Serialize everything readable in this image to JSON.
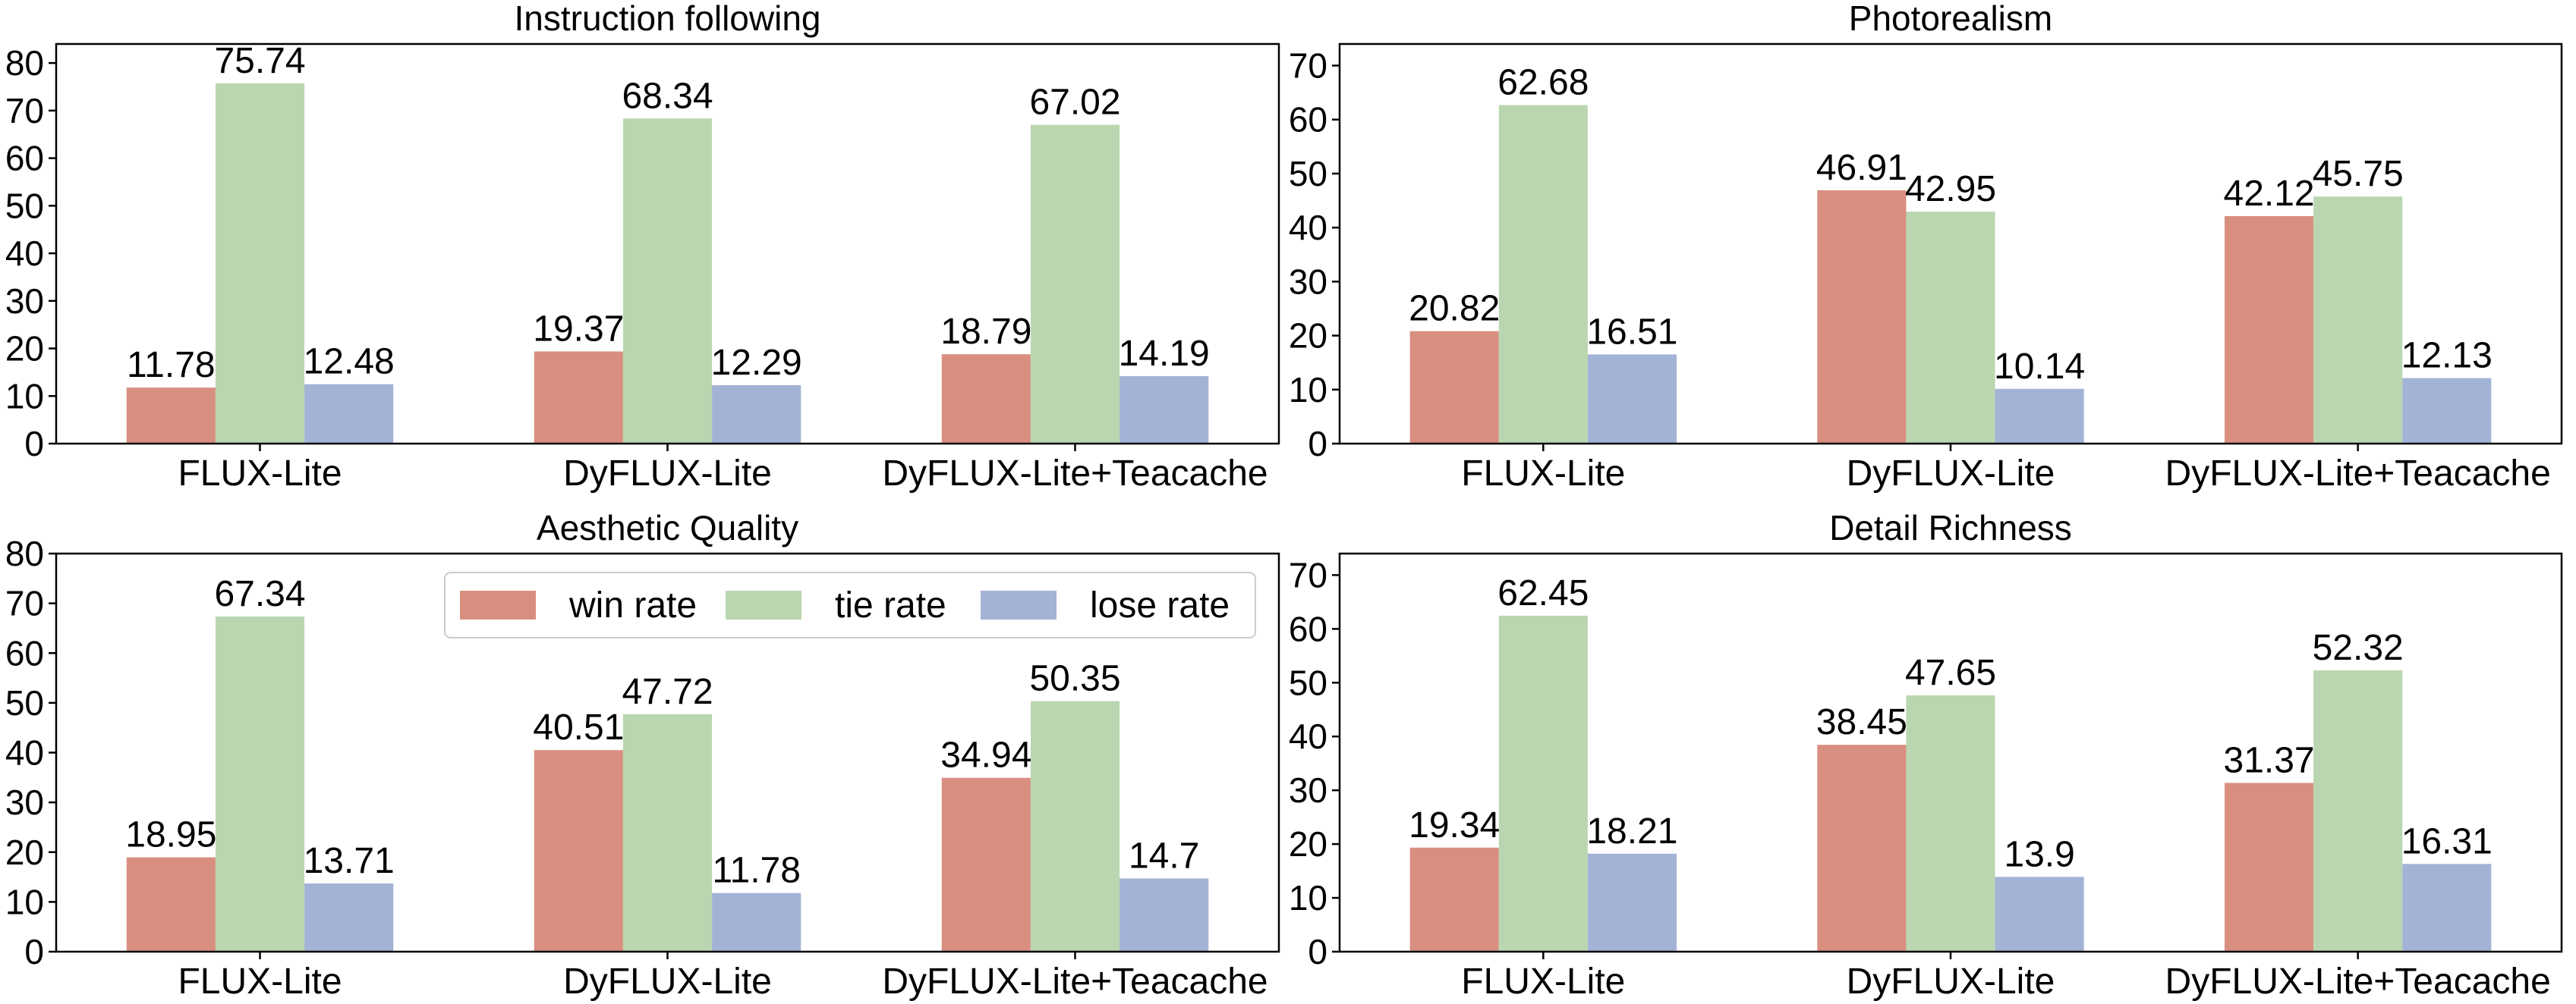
{
  "colors": {
    "win": "#d98f80",
    "tie": "#bad6b0",
    "lose": "#a3b3d6"
  },
  "legend": {
    "placement": "top-right of Aesthetic Quality panel",
    "items": [
      {
        "label": "win rate",
        "color_key": "win"
      },
      {
        "label": "tie rate",
        "color_key": "tie"
      },
      {
        "label": "lose rate",
        "color_key": "lose"
      }
    ]
  },
  "chart_data": [
    {
      "type": "bar",
      "title": "Instruction following",
      "categories": [
        "FLUX-Lite",
        "DyFLUX-Lite",
        "DyFLUX-Lite+Teacache"
      ],
      "series": [
        {
          "name": "win rate",
          "values": [
            11.78,
            19.37,
            18.79
          ]
        },
        {
          "name": "tie rate",
          "values": [
            75.74,
            68.34,
            67.02
          ]
        },
        {
          "name": "lose rate",
          "values": [
            12.48,
            12.29,
            14.19
          ]
        }
      ],
      "ylim": [
        0,
        84
      ],
      "yticks": [
        0,
        10,
        20,
        30,
        40,
        50,
        60,
        70,
        80
      ],
      "grid": false
    },
    {
      "type": "bar",
      "title": "Photorealism",
      "categories": [
        "FLUX-Lite",
        "DyFLUX-Lite",
        "DyFLUX-Lite+Teacache"
      ],
      "series": [
        {
          "name": "win rate",
          "values": [
            20.82,
            46.91,
            42.12
          ]
        },
        {
          "name": "tie rate",
          "values": [
            62.68,
            42.95,
            45.75
          ]
        },
        {
          "name": "lose rate",
          "values": [
            16.51,
            10.14,
            12.13
          ]
        }
      ],
      "ylim": [
        0,
        74
      ],
      "yticks": [
        0,
        10,
        20,
        30,
        40,
        50,
        60,
        70
      ],
      "grid": false
    },
    {
      "type": "bar",
      "title": "Aesthetic Quality",
      "categories": [
        "FLUX-Lite",
        "DyFLUX-Lite",
        "DyFLUX-Lite+Teacache"
      ],
      "series": [
        {
          "name": "win rate",
          "values": [
            18.95,
            40.51,
            34.94
          ]
        },
        {
          "name": "tie rate",
          "values": [
            67.34,
            47.72,
            50.35
          ]
        },
        {
          "name": "lose rate",
          "values": [
            13.71,
            11.78,
            14.7
          ]
        }
      ],
      "ylim": [
        0,
        80
      ],
      "yticks": [
        0,
        10,
        20,
        30,
        40,
        50,
        60,
        70,
        80
      ],
      "grid": false,
      "legend": true
    },
    {
      "type": "bar",
      "title": "Detail Richness",
      "categories": [
        "FLUX-Lite",
        "DyFLUX-Lite",
        "DyFLUX-Lite+Teacache"
      ],
      "series": [
        {
          "name": "win rate",
          "values": [
            19.34,
            38.45,
            31.37
          ]
        },
        {
          "name": "tie rate",
          "values": [
            62.45,
            47.65,
            52.32
          ]
        },
        {
          "name": "lose rate",
          "values": [
            18.21,
            13.9,
            16.31
          ]
        }
      ],
      "ylim": [
        0,
        74
      ],
      "yticks": [
        0,
        10,
        20,
        30,
        40,
        50,
        60,
        70
      ],
      "grid": false
    }
  ]
}
